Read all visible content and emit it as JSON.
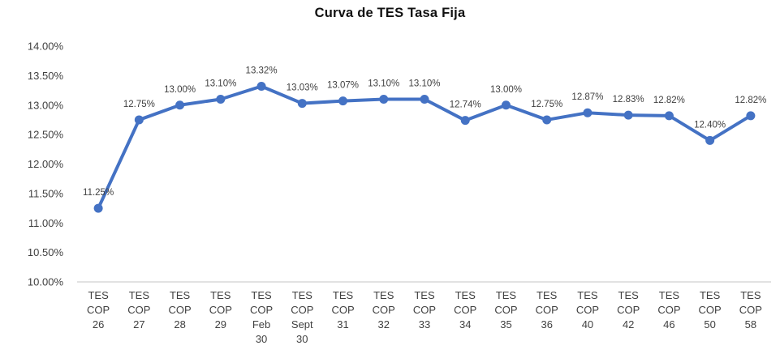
{
  "chart_data": {
    "type": "line",
    "title": "Curva de TES Tasa Fija",
    "categories": [
      "TES COP 26",
      "TES COP 27",
      "TES COP 28",
      "TES COP 29",
      "TES COP Feb 30",
      "TES COP Sept 30",
      "TES COP 31",
      "TES COP 32",
      "TES COP 33",
      "TES COP 34",
      "TES COP 35",
      "TES COP 36",
      "TES COP 40",
      "TES COP 42",
      "TES COP 46",
      "TES COP 50",
      "TES COP 58"
    ],
    "values": [
      11.25,
      12.75,
      13.0,
      13.1,
      13.32,
      13.03,
      13.07,
      13.1,
      13.1,
      12.74,
      13.0,
      12.75,
      12.87,
      12.83,
      12.82,
      12.4,
      12.82
    ],
    "data_labels": [
      "11.25%",
      "12.75%",
      "13.00%",
      "13.10%",
      "13.32%",
      "13.03%",
      "13.07%",
      "13.10%",
      "13.10%",
      "12.74%",
      "13.00%",
      "12.75%",
      "12.87%",
      "12.83%",
      "12.82%",
      "12.40%",
      "12.82%"
    ],
    "y_ticks": [
      "14.00%",
      "13.50%",
      "13.00%",
      "12.50%",
      "12.00%",
      "11.50%",
      "11.00%",
      "10.50%",
      "10.00%"
    ],
    "ylim": [
      10.0,
      14.0
    ],
    "y_step": 0.5,
    "grid": false,
    "legend": "none",
    "xlabel": "",
    "ylabel": "",
    "series_name": "TES Tasa Fija",
    "series_color": "#4472C4",
    "label_color": "#404040",
    "tick_color": "#404040",
    "axis_line_color": "#D9D9D9",
    "background_color": "#FFFFFF"
  }
}
